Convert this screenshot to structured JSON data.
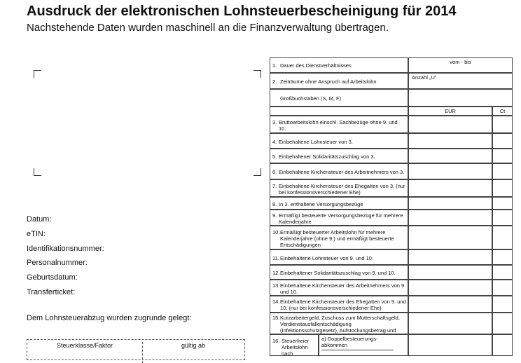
{
  "header": {
    "title": "Ausdruck der elektronischen Lohnsteuerbescheinigung für 2014",
    "subtitle": "Nachstehende Daten wurden maschinell an die Finanzverwaltung übertragen."
  },
  "fields": [
    "Datum:",
    "eTIN:",
    "Identifikationsnummer:",
    "Personalnummer:",
    "Geburtsdatum:",
    "Transferticket:"
  ],
  "basis": {
    "heading": "Dem Lohnsteuerabzug wurden zugrunde gelegt:",
    "columns": [
      "Steuerklasse/Faktor",
      "gültig ab"
    ]
  },
  "table": {
    "top_rows": [
      {
        "number": "1.",
        "text": "Dauer des Dienstverhältnisses",
        "note": "vom - bis"
      },
      {
        "number": "2.",
        "text": "Zeiträume ohne Anspruch auf Arbeitslohn",
        "note": "Anzahl „U“"
      },
      {
        "text": "Großbuchstaben (S, M, F)"
      }
    ],
    "currency": [
      "EUR",
      "Ct"
    ],
    "rows": [
      {
        "number": "3.",
        "text": "Bruttoarbeitslohn einschl. Sachbezüge ohne 9. und 10."
      },
      {
        "number": "4.",
        "text": "Einbehaltene Lohnsteuer von 3."
      },
      {
        "number": "5.",
        "text": "Einbehaltener Solidaritätszuschlag von 3."
      },
      {
        "number": "6.",
        "text": "Einbehaltene Kirchensteuer des Arbeitnehmers von 3."
      },
      {
        "number": "7.",
        "text": "Einbehaltene Kirchensteuer des Ehegatten von 3. (nur bei konfessionsverschiedener Ehe)"
      },
      {
        "number": "8.",
        "text": "In 3. enthaltene Versorgungsbezüge"
      },
      {
        "number": "9.",
        "text": "Ermäßigt besteuerte Versorgungsbezüge für mehrere Kalenderjahre"
      },
      {
        "number": "10.",
        "text": "Ermäßigt besteuerter Arbeitslohn für mehrere Kalenderjahre (ohne 9.) und ermäßigt besteuerte Entschädigungen"
      },
      {
        "number": "11.",
        "text": "Einbehaltene Lohnsteuer von 9. und 10."
      },
      {
        "number": "12.",
        "text": "Einbehaltener Solidaritätszuschlag von 9. und 10."
      },
      {
        "number": "13.",
        "text": "Einbehaltene Kirchensteuer des Arbeitnehmers von 9. und 10."
      },
      {
        "number": "14.",
        "text": "Einbehaltene Kirchensteuer des Ehegatten von 9. und 10. (nur bei konfessionsverschiedener Ehe)"
      },
      {
        "number": "15.",
        "text": "Kurzarbeitergeld, Zuschuss zum Mutterschaftsgeld, Verdienstausfallentschädigung (Infektionsschutzgesetz), Aufstockungsbetrag und Altersteilzeitzuschlag"
      },
      {
        "number": "16.",
        "text": "Steuerfreier Arbeitslohn nach",
        "sub": "a) Doppelbesteuerungs-abkommen"
      }
    ]
  }
}
